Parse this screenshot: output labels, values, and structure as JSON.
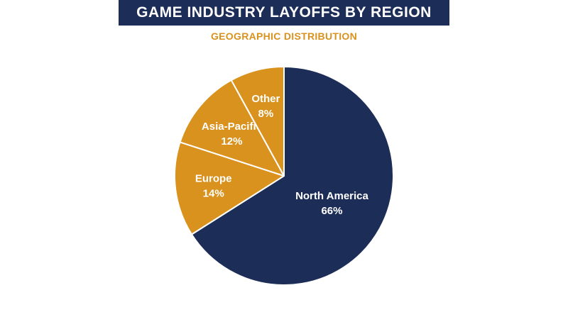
{
  "colors": {
    "title_bg": "#1c2d57",
    "accent": "#d9921d",
    "primary_slice": "#1c2d57",
    "secondary_slice": "#d9921d",
    "slice_border": "#ffffff"
  },
  "chart_data": {
    "type": "pie",
    "title": "GAME INDUSTRY LAYOFFS BY REGION",
    "subtitle": "GEOGRAPHIC DISTRIBUTION",
    "slices": [
      {
        "label": "North America",
        "value": 66,
        "value_label": "66%",
        "color": "#1c2d57"
      },
      {
        "label": "Europe",
        "value": 14,
        "value_label": "14%",
        "color": "#d9921d"
      },
      {
        "label": "Asia-Pacific",
        "value": 12,
        "value_label": "12%",
        "color": "#d9921d"
      },
      {
        "label": "Other",
        "value": 8,
        "value_label": "8%",
        "color": "#d9921d"
      }
    ],
    "start": "12 o'clock",
    "direction": "clockwise"
  }
}
